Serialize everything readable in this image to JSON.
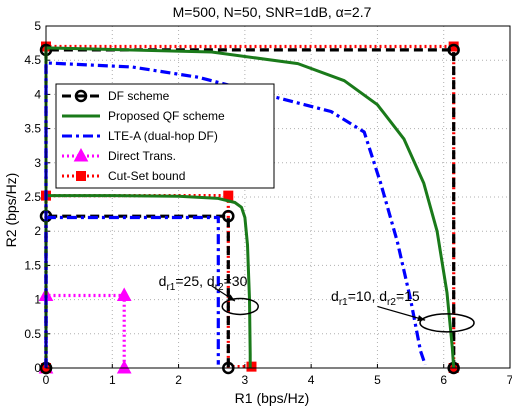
{
  "chart_data": {
    "type": "line",
    "title": "M=500, N=50,  SNR=1dB, α=2.7",
    "xlabel": "R1 (bps/Hz)",
    "ylabel": "R2 (bps/Hz)",
    "xlim": [
      0,
      7
    ],
    "ylim": [
      0,
      5
    ],
    "xticks": [
      "0",
      "1",
      "2",
      "3",
      "4",
      "5",
      "6",
      "7"
    ],
    "yticks": [
      "0",
      "0.5",
      "1",
      "1.5",
      "2",
      "2.5",
      "3",
      "3.5",
      "4",
      "4.5",
      "5"
    ],
    "grid": true,
    "legend_position": "top-left",
    "legend": [
      "DF scheme",
      "Proposed QF scheme",
      "LTE-A (dual-hop DF)",
      "Direct Trans.",
      "Cut-Set bound"
    ],
    "annotations": [
      {
        "sub_1": "r1",
        "val_1": "=25, d",
        "sub_2": "r2",
        "val_2": "=30",
        "x": 1.7,
        "y": 1.2
      },
      {
        "sub_1": "r1",
        "val_1": "=10, d",
        "sub_2": "r2",
        "val_2": "=15",
        "x": 4.3,
        "y": 0.98
      }
    ],
    "series": [
      {
        "key": "cut_near",
        "color": "#ff0000",
        "style": "dotted",
        "marker": "square",
        "x": [
          0,
          0,
          2.75,
          2.75,
          3.1
        ],
        "y": [
          0,
          2.52,
          2.52,
          0.02,
          0.02
        ],
        "marker_idx": [
          0,
          1,
          2,
          4
        ]
      },
      {
        "key": "df_near",
        "color": "#000000",
        "style": "dashed",
        "marker": "circle",
        "x": [
          0,
          0,
          2.75,
          2.75
        ],
        "y": [
          0,
          2.22,
          2.22,
          0
        ],
        "marker_idx": [
          0,
          1,
          2,
          3
        ]
      },
      {
        "key": "qf_near",
        "color": "#1a7a1a",
        "style": "solid",
        "marker": "none",
        "x": [
          0,
          0,
          1.0,
          2.0,
          2.6,
          2.85,
          2.95,
          3.0,
          3.04,
          3.07,
          3.08,
          3.08
        ],
        "y": [
          0,
          2.52,
          2.52,
          2.51,
          2.48,
          2.42,
          2.35,
          2.2,
          1.8,
          1.0,
          0.2,
          0
        ]
      },
      {
        "key": "lte_near",
        "color": "#0000ff",
        "style": "dashdot",
        "marker": "none",
        "x": [
          0,
          0,
          2.6,
          2.6
        ],
        "y": [
          0.05,
          2.2,
          2.2,
          0.05
        ]
      },
      {
        "key": "direct_near",
        "color": "#ff00ff",
        "style": "dotted",
        "marker": "triangle",
        "x": [
          0,
          0,
          1.18,
          1.18
        ],
        "y": [
          0,
          1.06,
          1.06,
          0
        ],
        "marker_idx": [
          0,
          1,
          2,
          3
        ]
      },
      {
        "key": "cut_far",
        "color": "#ff0000",
        "style": "dotted",
        "marker": "square",
        "x": [
          0,
          0,
          6.15,
          6.15
        ],
        "y": [
          0,
          4.7,
          4.7,
          0
        ],
        "marker_idx": [
          0,
          1,
          2,
          3
        ]
      },
      {
        "key": "df_far",
        "color": "#000000",
        "style": "dashed",
        "marker": "circle",
        "x": [
          0,
          0,
          6.15,
          6.15
        ],
        "y": [
          0,
          4.65,
          4.65,
          0
        ],
        "marker_idx": [
          0,
          1,
          2,
          3
        ]
      },
      {
        "key": "qf_far",
        "color": "#1a7a1a",
        "style": "solid",
        "marker": "none",
        "x": [
          0,
          0,
          2.5,
          3.8,
          4.5,
          5.0,
          5.4,
          5.7,
          5.9,
          6.05,
          6.13,
          6.15
        ],
        "y": [
          0,
          4.68,
          4.62,
          4.45,
          4.2,
          3.85,
          3.35,
          2.7,
          2.0,
          1.1,
          0.3,
          0
        ]
      },
      {
        "key": "lte_far",
        "color": "#0000ff",
        "style": "dashdot",
        "marker": "none",
        "x": [
          0,
          0,
          1.3,
          2.3,
          3.3,
          4.3,
          4.8,
          5.05,
          5.3,
          5.5,
          5.65,
          5.72
        ],
        "y": [
          0,
          4.46,
          4.4,
          4.25,
          4.0,
          3.75,
          3.45,
          2.7,
          1.85,
          1.0,
          0.25,
          0.05
        ]
      }
    ],
    "legend_styles": [
      {
        "color": "#000000",
        "style": "dashed",
        "marker": "circle"
      },
      {
        "color": "#1a7a1a",
        "style": "solid",
        "marker": "none"
      },
      {
        "color": "#0000ff",
        "style": "dashdot",
        "marker": "none"
      },
      {
        "color": "#ff00ff",
        "style": "dotted",
        "marker": "triangle"
      },
      {
        "color": "#ff0000",
        "style": "dotted",
        "marker": "square"
      }
    ]
  }
}
